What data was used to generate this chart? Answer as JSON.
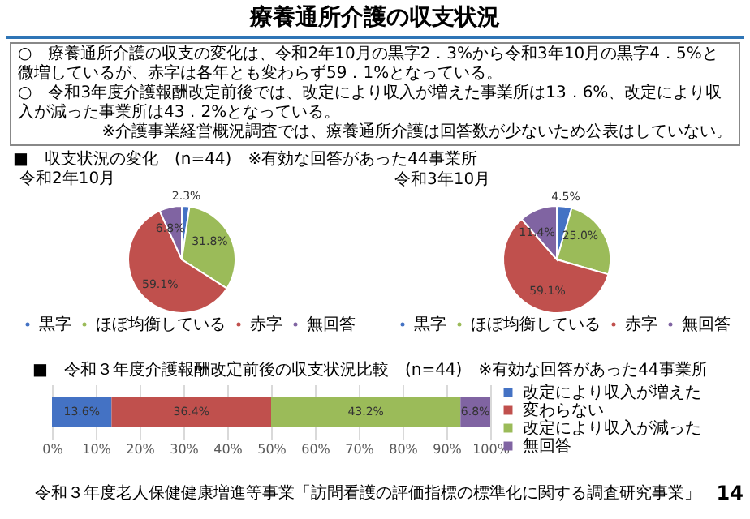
{
  "chart_data": [
    {
      "type": "other",
      "title": "療養通所介護の収支状況",
      "annotations": [
        "○　療養通所介護の収支の変化は、令和2年10月の黒字2．3%から令和3年10月の黒字4．5%と微増しているが、赤字は各年とも変わらず59．1%となっている。",
        "○　令和3年度介護報酬改定前後では、改定により収入が増えた事業所は13．6%、改定により収入が減った事業所は43．2%となっている。",
        "※介護事業経営概況調査では、療養通所介護は回答数が少ないため公表はしていない。"
      ]
    },
    {
      "type": "pie",
      "title": "令和2年10月",
      "annotations": [
        "■　収支状況の変化　(n=44)　※有効な回答があった44事業所"
      ],
      "categories": [
        "黒字",
        "ほぼ均衡している",
        "赤字",
        "無回答"
      ],
      "values": [
        2.3,
        31.8,
        59.1,
        6.8
      ],
      "value_labels": [
        "2.3%",
        "31.8%",
        "59.1%",
        "6.8%"
      ],
      "colors": [
        "#4472c4",
        "#9bbb59",
        "#c0504d",
        "#8064a2"
      ],
      "legend": "bottom"
    },
    {
      "type": "pie",
      "title": "令和3年10月",
      "categories": [
        "黒字",
        "ほぼ均衡している",
        "赤字",
        "無回答"
      ],
      "values": [
        4.5,
        25.0,
        59.1,
        11.4
      ],
      "value_labels": [
        "4.5%",
        "25.0%",
        "59.1%",
        "11.4%"
      ],
      "colors": [
        "#4472c4",
        "#9bbb59",
        "#c0504d",
        "#8064a2"
      ],
      "legend": "bottom"
    },
    {
      "type": "bar",
      "orientation": "horizontal",
      "stacked": true,
      "title": "■　令和３年度介護報酬改定前後の収支状況比較　(n=44)　※有効な回答があった44事業所",
      "annotations": [
        "令和３年度老人保健健康増進等事業「訪問看護の評価指標の標準化に関する調査研究事業」",
        "14"
      ],
      "categories": [
        null
      ],
      "series": [
        {
          "name": "改定により収入が増えた",
          "color": "#4472c4",
          "values": [
            13.6
          ],
          "value_labels": [
            "13.6%"
          ]
        },
        {
          "name": "変わらない",
          "color": "#c0504d",
          "values": [
            36.4
          ],
          "value_labels": [
            "36.4%"
          ]
        },
        {
          "name": "改定により収入が減った",
          "color": "#9bbb59",
          "values": [
            43.2
          ],
          "value_labels": [
            "43.2%"
          ]
        },
        {
          "name": "無回答",
          "color": "#8064a2",
          "values": [
            6.8
          ],
          "value_labels": [
            "6.8%"
          ]
        }
      ],
      "xlim": [
        0,
        100
      ],
      "xticks": [
        {
          "value": 0,
          "label": "0%"
        },
        {
          "value": 10,
          "label": "10%"
        },
        {
          "value": 20,
          "label": "20%"
        },
        {
          "value": 30,
          "label": "30%"
        },
        {
          "value": 40,
          "label": "40%"
        },
        {
          "value": 50,
          "label": "50%"
        },
        {
          "value": 60,
          "label": "60%"
        },
        {
          "value": 70,
          "label": "70%"
        },
        {
          "value": 80,
          "label": "80%"
        },
        {
          "value": 90,
          "label": "90%"
        },
        {
          "value": 100,
          "label": "100%"
        }
      ],
      "grid": "x",
      "legend": "right"
    }
  ]
}
